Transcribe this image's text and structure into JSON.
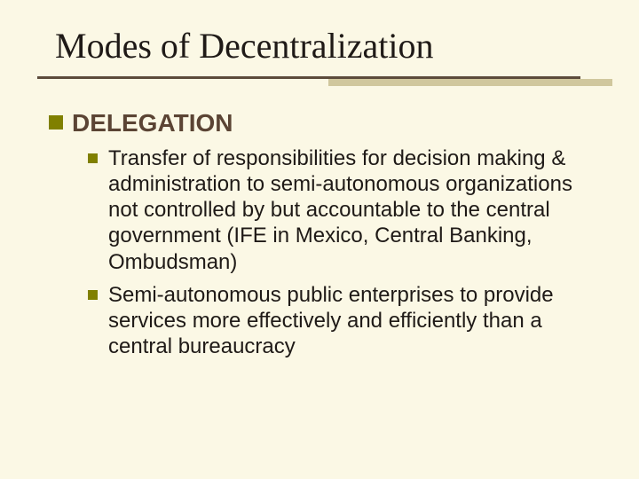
{
  "background_color": "#fbf8e5",
  "title": {
    "text": "Modes of Decentralization",
    "font_family": "Times New Roman",
    "font_size_pt": 40,
    "color": "#1f1a17"
  },
  "underline": {
    "dark_color": "#5c4b3b",
    "light_color": "#d0c79d"
  },
  "bullet_colors": {
    "level1": "#808000",
    "level2": "#808000"
  },
  "content": {
    "heading": {
      "text": "DELEGATION",
      "font_family": "Arial",
      "font_size_pt": 28,
      "font_weight": "bold",
      "color": "#5b4434"
    },
    "items": [
      {
        "text": "Transfer of responsibilities for decision making & administration to semi-autonomous organizations not controlled by but accountable to the central government (IFE in Mexico, Central Banking, Ombudsman)",
        "font_family": "Arial",
        "font_size_pt": 24,
        "color": "#1f1a17"
      },
      {
        "text": "Semi-autonomous public enterprises to provide services more effectively and efficiently than a central bureaucracy",
        "font_family": "Arial",
        "font_size_pt": 24,
        "color": "#1f1a17"
      }
    ]
  }
}
